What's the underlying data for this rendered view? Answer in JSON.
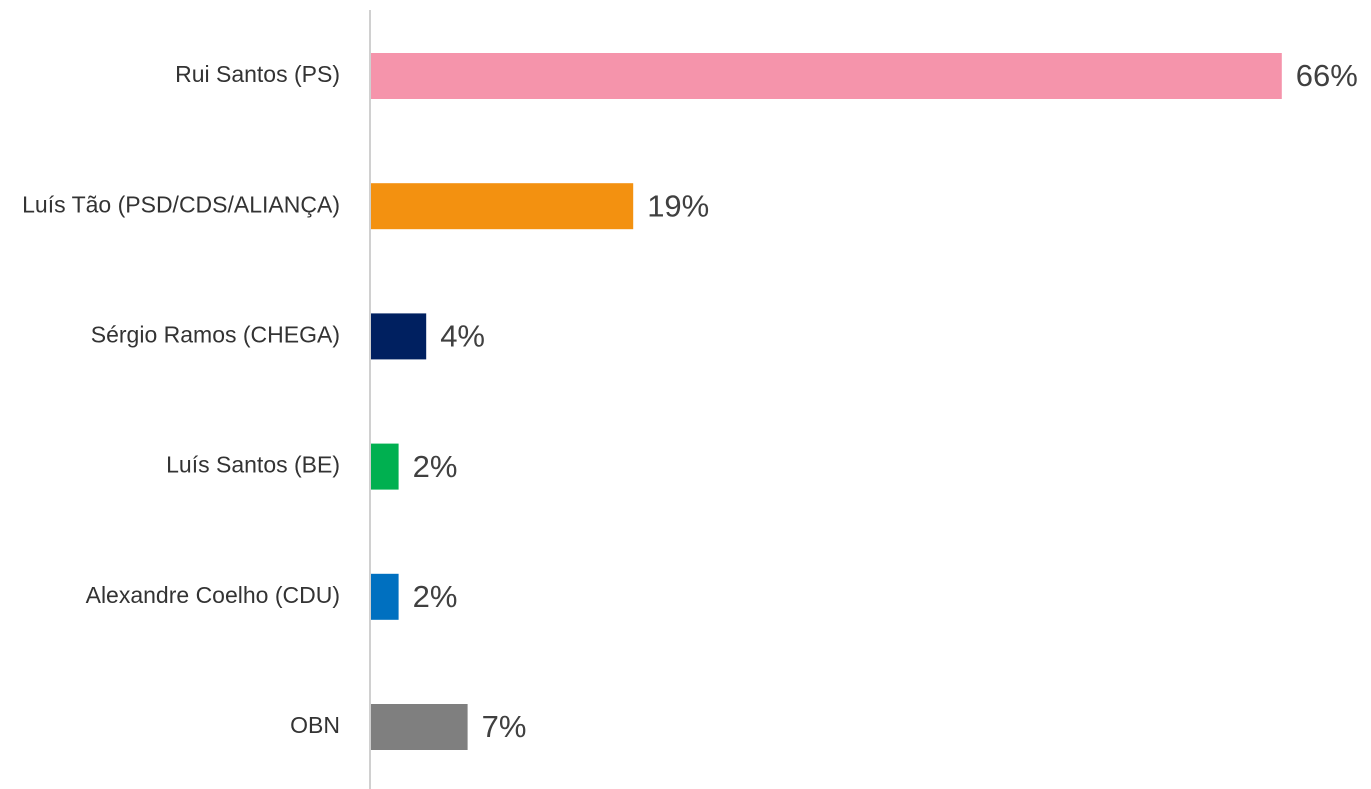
{
  "chart_data": {
    "type": "bar",
    "orientation": "horizontal",
    "categories": [
      "Rui Santos (PS)",
      "Luís Tão (PSD/CDS/ALIANÇA)",
      "Sérgio Ramos (CHEGA)",
      "Luís Santos (BE)",
      "Alexandre Coelho (CDU)",
      "OBN"
    ],
    "values": [
      66,
      19,
      4,
      2,
      2,
      7
    ],
    "value_labels": [
      "66%",
      "19%",
      "4%",
      "2%",
      "2%",
      "7%"
    ],
    "colors": [
      "#f594ab",
      "#f39110",
      "#002060",
      "#00b050",
      "#0070c0",
      "#7f7f7f"
    ]
  }
}
